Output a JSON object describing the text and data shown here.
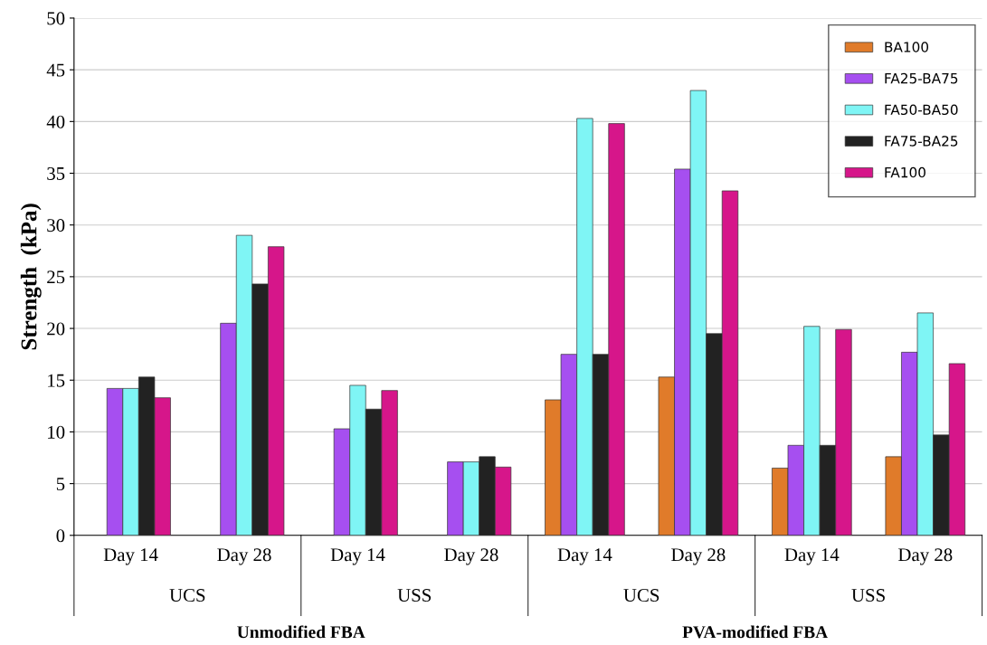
{
  "chart_data": {
    "type": "bar",
    "ylabel": "Strength  (kPa)",
    "categories": [
      "Day 14",
      "Day 28",
      "Day 14",
      "Day 28",
      "Day 14",
      "Day 28",
      "Day 14",
      "Day 28"
    ],
    "series": [
      {
        "name": "BA100",
        "color": "#e07b2a",
        "values": [
          null,
          null,
          null,
          null,
          13.1,
          15.3,
          6.5,
          7.6
        ]
      },
      {
        "name": "FA25-BA75",
        "color": "#a64ff0",
        "values": [
          14.2,
          20.5,
          10.3,
          7.1,
          17.5,
          35.4,
          8.7,
          17.7
        ]
      },
      {
        "name": "FA50-BA50",
        "color": "#7ff5f5",
        "values": [
          14.2,
          29.0,
          14.5,
          7.1,
          40.3,
          43.0,
          20.2,
          21.5
        ]
      },
      {
        "name": "FA75-BA25",
        "color": "#222222",
        "values": [
          15.3,
          24.3,
          12.2,
          7.6,
          17.5,
          19.5,
          8.7,
          9.7
        ]
      },
      {
        "name": "FA100",
        "color": "#d6168a",
        "values": [
          13.3,
          27.9,
          14.0,
          6.6,
          39.8,
          33.3,
          19.9,
          16.6
        ]
      }
    ],
    "ylim": [
      0,
      50
    ],
    "yticks": [
      0,
      5,
      10,
      15,
      20,
      25,
      30,
      35,
      40,
      45,
      50
    ],
    "grid": "y",
    "legend": "top right",
    "annotations": [
      "UCS",
      "USS",
      "UCS",
      "USS",
      "Unmodified FBA",
      "PVA-modified FBA"
    ]
  }
}
